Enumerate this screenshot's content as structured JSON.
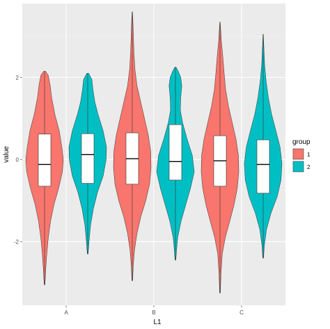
{
  "chart_data": {
    "type": "violin",
    "title": "",
    "xlabel": "L1",
    "ylabel": "value",
    "categories": [
      "A",
      "B",
      "C"
    ],
    "ylim": [
      -3.55,
      3.8
    ],
    "yticks": [
      -2,
      0,
      2
    ],
    "ytick_labels": [
      "-2",
      "0",
      "2"
    ],
    "grid": true,
    "legend": {
      "title": "group",
      "position": "right",
      "entries": [
        {
          "label": "1",
          "color": "#F8766D"
        },
        {
          "label": "2",
          "color": "#00BFC4"
        }
      ]
    },
    "series": [
      {
        "category": "A",
        "group": "1",
        "color": "#F8766D",
        "min": -3.05,
        "max": 2.15,
        "q1": -0.65,
        "median": -0.12,
        "q3": 0.62,
        "density": [
          [
            -3.05,
            0.02
          ],
          [
            -2.7,
            0.06
          ],
          [
            -2.3,
            0.12
          ],
          [
            -1.9,
            0.2
          ],
          [
            -1.5,
            0.32
          ],
          [
            -1.1,
            0.5
          ],
          [
            -0.7,
            0.75
          ],
          [
            -0.3,
            0.95
          ],
          [
            0.0,
            1.0
          ],
          [
            0.3,
            0.92
          ],
          [
            0.7,
            0.78
          ],
          [
            1.1,
            0.55
          ],
          [
            1.5,
            0.38
          ],
          [
            1.8,
            0.3
          ],
          [
            2.05,
            0.2
          ],
          [
            2.15,
            0.05
          ]
        ]
      },
      {
        "category": "A",
        "group": "2",
        "color": "#00BFC4",
        "min": -2.3,
        "max": 2.1,
        "q1": -0.58,
        "median": 0.12,
        "q3": 0.63,
        "density": [
          [
            -2.3,
            0.02
          ],
          [
            -2.0,
            0.07
          ],
          [
            -1.6,
            0.15
          ],
          [
            -1.2,
            0.3
          ],
          [
            -0.8,
            0.52
          ],
          [
            -0.4,
            0.82
          ],
          [
            0.0,
            0.98
          ],
          [
            0.3,
            1.0
          ],
          [
            0.7,
            0.82
          ],
          [
            1.1,
            0.55
          ],
          [
            1.4,
            0.38
          ],
          [
            1.7,
            0.28
          ],
          [
            1.95,
            0.22
          ],
          [
            2.1,
            0.05
          ]
        ]
      },
      {
        "category": "B",
        "group": "1",
        "color": "#F8766D",
        "min": -2.95,
        "max": 3.6,
        "q1": -0.6,
        "median": 0.02,
        "q3": 0.65,
        "density": [
          [
            -2.95,
            0.02
          ],
          [
            -2.6,
            0.05
          ],
          [
            -2.2,
            0.12
          ],
          [
            -1.8,
            0.25
          ],
          [
            -1.4,
            0.45
          ],
          [
            -1.0,
            0.72
          ],
          [
            -0.6,
            0.92
          ],
          [
            -0.2,
            1.0
          ],
          [
            0.2,
            0.98
          ],
          [
            0.6,
            0.85
          ],
          [
            1.0,
            0.65
          ],
          [
            1.4,
            0.45
          ],
          [
            1.8,
            0.25
          ],
          [
            2.2,
            0.14
          ],
          [
            2.6,
            0.09
          ],
          [
            3.0,
            0.06
          ],
          [
            3.4,
            0.03
          ],
          [
            3.6,
            0.01
          ]
        ]
      },
      {
        "category": "B",
        "group": "2",
        "color": "#00BFC4",
        "min": -2.45,
        "max": 2.25,
        "q1": -0.5,
        "median": -0.05,
        "q3": 0.85,
        "density": [
          [
            -2.45,
            0.02
          ],
          [
            -2.2,
            0.06
          ],
          [
            -1.9,
            0.12
          ],
          [
            -1.5,
            0.3
          ],
          [
            -1.1,
            0.55
          ],
          [
            -0.7,
            0.8
          ],
          [
            -0.3,
            1.0
          ],
          [
            0.1,
            0.9
          ],
          [
            0.5,
            0.62
          ],
          [
            0.9,
            0.38
          ],
          [
            1.2,
            0.26
          ],
          [
            1.5,
            0.28
          ],
          [
            1.8,
            0.34
          ],
          [
            2.0,
            0.28
          ],
          [
            2.15,
            0.15
          ],
          [
            2.25,
            0.03
          ]
        ]
      },
      {
        "category": "C",
        "group": "1",
        "color": "#F8766D",
        "min": -3.25,
        "max": 3.35,
        "q1": -0.65,
        "median": -0.03,
        "q3": 0.58,
        "density": [
          [
            -3.25,
            0.02
          ],
          [
            -2.8,
            0.05
          ],
          [
            -2.3,
            0.12
          ],
          [
            -1.9,
            0.28
          ],
          [
            -1.5,
            0.52
          ],
          [
            -1.1,
            0.75
          ],
          [
            -0.7,
            0.92
          ],
          [
            -0.3,
            1.0
          ],
          [
            0.1,
            0.98
          ],
          [
            0.5,
            0.85
          ],
          [
            0.9,
            0.65
          ],
          [
            1.3,
            0.45
          ],
          [
            1.7,
            0.3
          ],
          [
            2.1,
            0.22
          ],
          [
            2.5,
            0.15
          ],
          [
            2.9,
            0.07
          ],
          [
            3.35,
            0.01
          ]
        ]
      },
      {
        "category": "C",
        "group": "2",
        "color": "#00BFC4",
        "min": -2.4,
        "max": 3.05,
        "q1": -0.82,
        "median": -0.12,
        "q3": 0.48,
        "density": [
          [
            -2.4,
            0.02
          ],
          [
            -2.1,
            0.06
          ],
          [
            -1.7,
            0.18
          ],
          [
            -1.3,
            0.42
          ],
          [
            -0.9,
            0.75
          ],
          [
            -0.5,
            0.95
          ],
          [
            -0.1,
            1.0
          ],
          [
            0.3,
            0.9
          ],
          [
            0.7,
            0.68
          ],
          [
            1.1,
            0.45
          ],
          [
            1.5,
            0.28
          ],
          [
            1.9,
            0.16
          ],
          [
            2.3,
            0.08
          ],
          [
            2.7,
            0.04
          ],
          [
            3.05,
            0.01
          ]
        ]
      }
    ]
  }
}
